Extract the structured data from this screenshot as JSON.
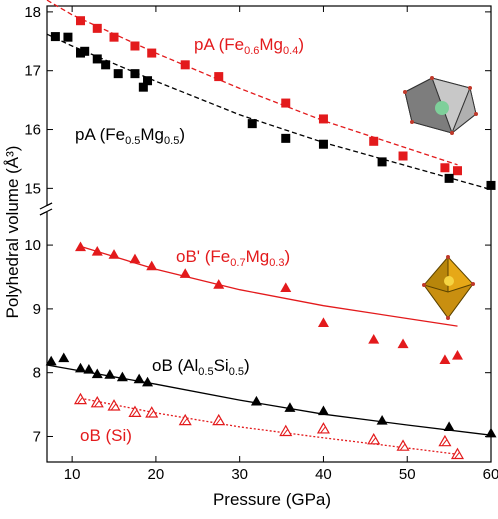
{
  "chart_data": {
    "type": "scatter",
    "xlabel": "Pressure (GPa)",
    "ylabel": "Polyhedral volume (Å³)",
    "xlim": [
      7,
      60
    ],
    "x_ticks": [
      10,
      20,
      30,
      40,
      50,
      60
    ],
    "y_upper_lim": [
      14.7,
      18.1
    ],
    "y_upper_ticks": [
      15,
      16,
      17,
      18
    ],
    "y_lower_lim": [
      6.6,
      10.55
    ],
    "y_lower_ticks": [
      7,
      8,
      9,
      10
    ],
    "axis_break": "between 10.5 and 14.7",
    "series": [
      {
        "name": "pA (Fe0.6Mg0.4)",
        "panel": "upper",
        "marker": "square",
        "filled": true,
        "color": "#e31a1c",
        "fit_style": "dashed",
        "x": [
          11,
          13,
          15,
          17.5,
          19.5,
          23.5,
          27.5,
          35.5,
          40,
          46,
          49.5,
          54.5,
          56
        ],
        "y": [
          17.85,
          17.72,
          17.57,
          17.42,
          17.3,
          17.1,
          16.9,
          16.45,
          16.18,
          15.8,
          15.55,
          15.35,
          15.3
        ],
        "fit": [
          [
            7,
            18.2
          ],
          [
            10,
            17.95
          ],
          [
            20,
            17.3
          ],
          [
            30,
            16.7
          ],
          [
            40,
            16.15
          ],
          [
            56,
            15.4
          ]
        ]
      },
      {
        "name": "pA (Fe0.5Mg0.5)",
        "panel": "upper",
        "marker": "square",
        "filled": true,
        "color": "#000000",
        "fit_style": "dashed",
        "x": [
          8,
          9.5,
          11,
          11.5,
          13,
          14,
          15.5,
          17.5,
          18.5,
          19,
          31.5,
          35.5,
          40,
          47,
          55,
          60
        ],
        "y": [
          17.58,
          17.57,
          17.3,
          17.33,
          17.2,
          17.1,
          16.95,
          16.95,
          16.72,
          16.83,
          16.1,
          15.85,
          15.75,
          15.45,
          15.17,
          15.05
        ],
        "fit": [
          [
            7,
            17.62
          ],
          [
            10,
            17.42
          ],
          [
            20,
            16.82
          ],
          [
            30,
            16.25
          ],
          [
            40,
            15.78
          ],
          [
            50,
            15.38
          ],
          [
            60,
            14.98
          ]
        ]
      },
      {
        "name": "oB' (Fe0.7Mg0.3)",
        "panel": "lower",
        "marker": "triangle",
        "filled": true,
        "color": "#e31a1c",
        "fit_style": "solid",
        "x": [
          11,
          13,
          15,
          17.5,
          19.5,
          23.5,
          27.5,
          35.5,
          40,
          46,
          49.5,
          54.5,
          56
        ],
        "y": [
          9.97,
          9.9,
          9.85,
          9.78,
          9.67,
          9.55,
          9.38,
          9.33,
          8.78,
          8.52,
          8.45,
          8.2,
          8.27
        ],
        "fit": [
          [
            11,
            9.98
          ],
          [
            20,
            9.62
          ],
          [
            30,
            9.3
          ],
          [
            40,
            9.05
          ],
          [
            50,
            8.85
          ],
          [
            56,
            8.73
          ]
        ]
      },
      {
        "name": "oB (Al0.5Si0.5)",
        "panel": "lower",
        "marker": "triangle",
        "filled": true,
        "color": "#000000",
        "fit_style": "solid",
        "x": [
          7.5,
          9,
          11,
          12,
          13,
          14.5,
          16,
          18,
          19,
          32,
          36,
          40,
          47,
          55,
          60
        ],
        "y": [
          8.18,
          8.23,
          8.07,
          8.05,
          7.98,
          7.97,
          7.93,
          7.9,
          7.85,
          7.55,
          7.45,
          7.4,
          7.25,
          7.15,
          7.05
        ],
        "fit": [
          [
            7,
            8.12
          ],
          [
            20,
            7.82
          ],
          [
            30,
            7.57
          ],
          [
            40,
            7.35
          ],
          [
            50,
            7.18
          ],
          [
            60,
            7.02
          ]
        ]
      },
      {
        "name": "oB (Si)",
        "panel": "lower",
        "marker": "triangle",
        "filled": false,
        "color": "#e31a1c",
        "fit_style": "dotted",
        "x": [
          11,
          13,
          15,
          17.5,
          19.5,
          23.5,
          27.5,
          35.5,
          40,
          46,
          49.5,
          54.5,
          56
        ],
        "y": [
          7.58,
          7.53,
          7.48,
          7.38,
          7.37,
          7.25,
          7.25,
          7.08,
          7.12,
          6.95,
          6.85,
          6.92,
          6.72
        ],
        "fit": [
          [
            11,
            7.6
          ],
          [
            20,
            7.37
          ],
          [
            30,
            7.15
          ],
          [
            40,
            6.98
          ],
          [
            50,
            6.82
          ],
          [
            56,
            6.72
          ]
        ]
      }
    ],
    "labels": {
      "pA_red": {
        "main": "pA (Fe",
        "s1": "0.6",
        "mid": "Mg",
        "s2": "0.4",
        "end": ")"
      },
      "pA_black": {
        "main": "pA (Fe",
        "s1": "0.5",
        "mid": "Mg",
        "s2": "0.5",
        "end": ")"
      },
      "oBp_red": {
        "main": "oB' (Fe",
        "s1": "0.7",
        "mid": "Mg",
        "s2": "0.3",
        "end": ")"
      },
      "oB_black": {
        "main": "oB (Al",
        "s1": "0.5",
        "mid": "Si",
        "s2": "0.5",
        "end": ")"
      },
      "oB_si": {
        "main": "oB (Si)"
      }
    },
    "icons": [
      "polyhedron-gray-icon",
      "octahedron-gold-icon"
    ]
  }
}
